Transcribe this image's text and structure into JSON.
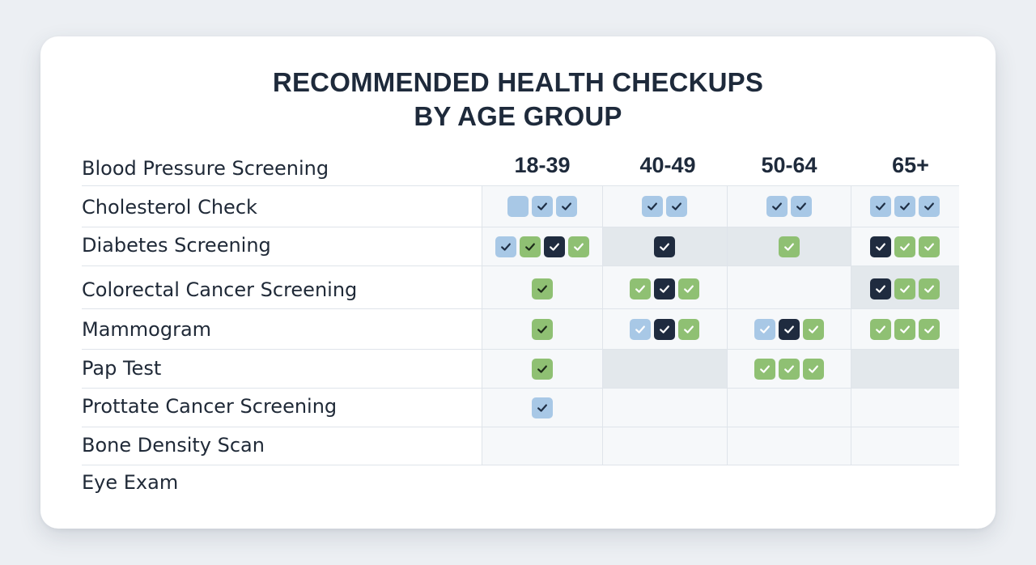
{
  "title_lines": [
    "RECOMMENDED HEALTH CHECKUPS",
    "BY AGE GROUP"
  ],
  "columns": [
    "18-39",
    "40-49",
    "50-64",
    "65+"
  ],
  "rows": [
    "Blood Pressure Screening",
    "Cholesterol Check",
    "Diabetes Screening",
    "Colorectal Cancer Screening",
    "Mammogram",
    "Pap Test",
    "Prottate Cancer Screening",
    "Bone Density Scan",
    "Eye Exam"
  ],
  "colors": {
    "light_blue": "#a8c8e6",
    "green": "#8fc073",
    "navy": "#1f2b3f",
    "shade": "#e3e8ec"
  },
  "marks": [
    [],
    [
      [
        "blank",
        "light",
        "light"
      ],
      [
        "light",
        "light"
      ],
      [
        "light",
        "light"
      ],
      [
        "light",
        "light",
        "light"
      ]
    ],
    [
      [
        "light",
        "greendark",
        "navy",
        "green"
      ],
      [
        "navy"
      ],
      [
        "green"
      ],
      [
        "navy",
        "green",
        "green"
      ]
    ],
    [
      [
        "greendark"
      ],
      [
        "green",
        "navy",
        "green"
      ],
      [],
      [
        "navy",
        "green",
        "green"
      ]
    ],
    [
      [
        "greendark"
      ],
      [
        "lightsoft",
        "navy",
        "green"
      ],
      [
        "lightsoft",
        "navy",
        "green"
      ],
      [
        "green",
        "green",
        "green"
      ]
    ],
    [
      [
        "greendark"
      ],
      [],
      [
        "green",
        "green",
        "green"
      ],
      []
    ],
    [
      [
        "light"
      ],
      [],
      [],
      []
    ],
    [
      [],
      [],
      [],
      []
    ],
    [
      [],
      [],
      [],
      []
    ]
  ],
  "shaded_cells": [
    [
      2,
      1
    ],
    [
      2,
      2
    ],
    [
      3,
      3
    ],
    [
      5,
      1
    ],
    [
      5,
      3
    ]
  ]
}
